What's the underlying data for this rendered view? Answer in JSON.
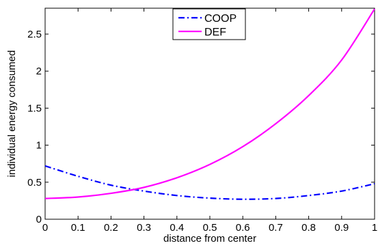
{
  "chart_data": {
    "type": "line",
    "title": "",
    "xlabel": "distance from center",
    "ylabel": "individual energy consumed",
    "xlim": [
      0,
      1
    ],
    "ylim": [
      0,
      2.85
    ],
    "x_ticks": [
      0,
      0.1,
      0.2,
      0.3,
      0.4,
      0.5,
      0.6,
      0.7,
      0.8,
      0.9,
      1
    ],
    "x_tick_labels": [
      "0",
      "0.1",
      "0.2",
      "0.3",
      "0.4",
      "0.5",
      "0.6",
      "0.7",
      "0.8",
      "0.9",
      "1"
    ],
    "y_ticks": [
      0,
      0.5,
      1,
      1.5,
      2,
      2.5
    ],
    "y_tick_labels": [
      "0",
      "0.5",
      "1",
      "1.5",
      "2",
      "2.5"
    ],
    "grid": false,
    "legend_position": "top-center",
    "x": [
      0,
      0.1,
      0.2,
      0.3,
      0.4,
      0.5,
      0.6,
      0.7,
      0.8,
      0.9,
      1.0
    ],
    "series": [
      {
        "name": "COOP",
        "color": "#0000ff",
        "line_style": "dash-dot",
        "values": [
          0.72,
          0.58,
          0.46,
          0.38,
          0.32,
          0.285,
          0.27,
          0.28,
          0.32,
          0.38,
          0.48
        ]
      },
      {
        "name": "DEF",
        "color": "#ff00ff",
        "line_style": "solid",
        "values": [
          0.28,
          0.3,
          0.35,
          0.43,
          0.56,
          0.74,
          0.98,
          1.29,
          1.67,
          2.15,
          2.84
        ]
      }
    ]
  }
}
